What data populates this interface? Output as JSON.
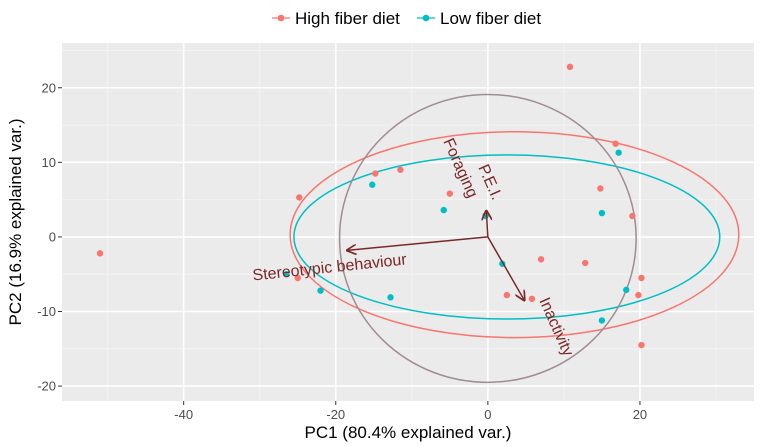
{
  "chart_data": {
    "type": "scatter",
    "subtype": "pca-biplot",
    "title": "",
    "xlabel": "PC1 (80.4% explained var.)",
    "ylabel": "PC2 (16.9% explained var.)",
    "xlim": [
      -56,
      35
    ],
    "ylim": [
      -22,
      26
    ],
    "x_ticks": [
      -40,
      -20,
      0,
      20
    ],
    "y_ticks": [
      -20,
      -10,
      0,
      10,
      20
    ],
    "x_tick_labels": [
      "-40",
      "-20",
      "0",
      "20"
    ],
    "y_tick_labels": [
      "-20",
      "-10",
      "0",
      "10",
      "20"
    ],
    "grid": true,
    "legend_position": "top",
    "series": [
      {
        "name": "High fiber diet",
        "color": "#F8766D",
        "points": [
          [
            -51,
            -2.2
          ],
          [
            -24.8,
            5.3
          ],
          [
            -25,
            -5.5
          ],
          [
            -14.8,
            8.5
          ],
          [
            -11.5,
            9
          ],
          [
            -5,
            5.8
          ],
          [
            -0.3,
            2.9
          ],
          [
            2.5,
            -7.8
          ],
          [
            5.8,
            -8.3
          ],
          [
            7,
            -3
          ],
          [
            10.8,
            22.8
          ],
          [
            12.8,
            -3.5
          ],
          [
            14.8,
            6.5
          ],
          [
            16.8,
            12.5
          ],
          [
            19,
            2.8
          ],
          [
            19.8,
            -7.8
          ],
          [
            20.2,
            -5.5
          ],
          [
            20.2,
            -14.5
          ]
        ]
      },
      {
        "name": "Low fiber diet",
        "color": "#00BFC4",
        "points": [
          [
            -26.5,
            -5
          ],
          [
            -22,
            -7.2
          ],
          [
            -15.2,
            7
          ],
          [
            -12.8,
            -8.1
          ],
          [
            -5.8,
            3.6
          ],
          [
            -0.3,
            2.8
          ],
          [
            1.9,
            -3.6
          ],
          [
            15,
            3.2
          ],
          [
            15,
            -11.2
          ],
          [
            17.2,
            11.3
          ],
          [
            18.2,
            -7.1
          ]
        ]
      }
    ],
    "ellipses": [
      {
        "group": "High fiber diet",
        "cx": 3.5,
        "cy": 0.3,
        "rx": 29.5,
        "ry": 13.8,
        "color": "#F8766D"
      },
      {
        "group": "Low fiber diet",
        "cx": 2.5,
        "cy": 0,
        "rx": 28,
        "ry": 11,
        "color": "#00BFC4"
      },
      {
        "group": "correlation circle",
        "cx": 0,
        "cy": -0.2,
        "rx": 19.5,
        "ry": 19.3,
        "color": "#A18B94"
      }
    ],
    "loadings": [
      {
        "label": "Stereotypic behaviour",
        "x": -18.5,
        "y": -1.8
      },
      {
        "label": "P.E.I.",
        "x": -0.2,
        "y": 3.5
      },
      {
        "label": "Foraging",
        "x": -0.2,
        "y": 3.5
      },
      {
        "label": "Inactivity",
        "x": 4.8,
        "y": -8.5
      }
    ],
    "loading_color": "#7B2727",
    "legend": [
      {
        "name": "High fiber diet",
        "color": "#F8766D"
      },
      {
        "name": "Low fiber diet",
        "color": "#00BFC4"
      }
    ]
  }
}
